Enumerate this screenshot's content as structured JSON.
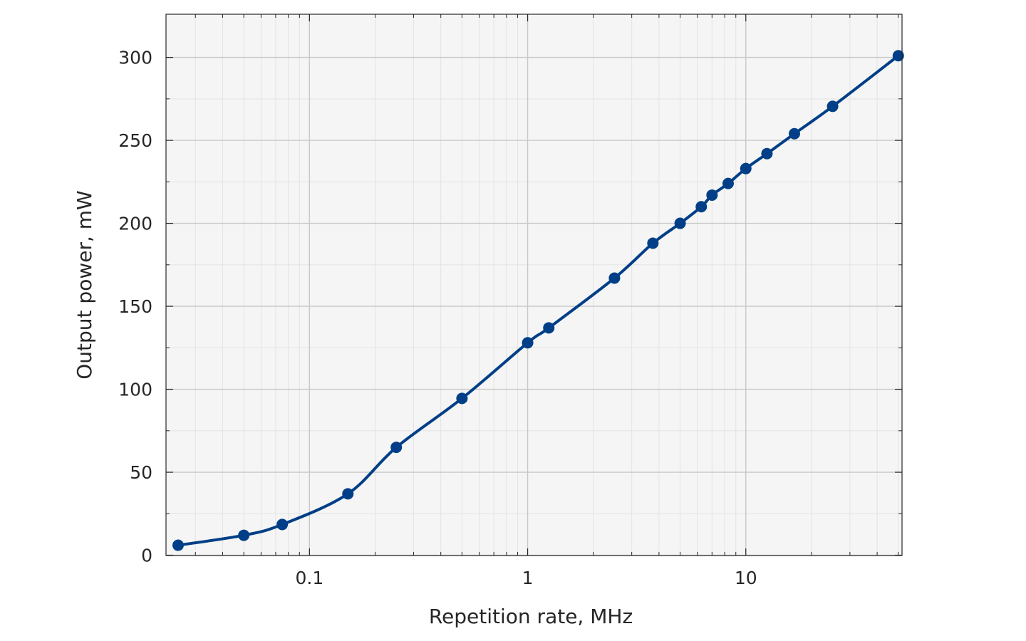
{
  "chart_data": {
    "type": "line",
    "xlabel": "Repetition rate, MHz",
    "ylabel": "Output power, mW",
    "x_scale": "log",
    "xlim": [
      0.022,
      52
    ],
    "ylim": [
      -0.2,
      326
    ],
    "grid": true,
    "x_ticks": [
      {
        "value": 0.1,
        "label": "0.1"
      },
      {
        "value": 1,
        "label": "1"
      },
      {
        "value": 10,
        "label": "10"
      }
    ],
    "y_ticks": [
      {
        "value": 0,
        "label": "0"
      },
      {
        "value": 50,
        "label": "50"
      },
      {
        "value": 100,
        "label": "100"
      },
      {
        "value": 150,
        "label": "150"
      },
      {
        "value": 200,
        "label": "200"
      },
      {
        "value": 250,
        "label": "250"
      },
      {
        "value": 300,
        "label": "300"
      }
    ],
    "series": [
      {
        "color": "#003f87",
        "x": [
          0.025,
          0.05,
          0.075,
          0.15,
          0.25,
          0.5,
          1,
          1.25,
          2.5,
          3.75,
          5,
          6.25,
          7,
          8.3,
          10,
          12.5,
          16.7,
          25,
          50
        ],
        "y": [
          6,
          12,
          18.5,
          37,
          65,
          94.5,
          128,
          137,
          167,
          188,
          200,
          210,
          217,
          224,
          233,
          242,
          254,
          270.5,
          301
        ]
      }
    ]
  }
}
